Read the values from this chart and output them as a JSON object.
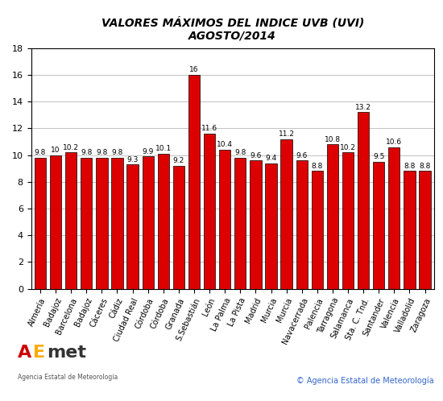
{
  "title_line1": "VALORES MÁXIMOS DEL INDICE UVB (UVI)",
  "title_line2": "AGOSTO/2014",
  "x_labels": [
    "Almería",
    "Badajoz",
    "Barcelona",
    "Badajoz",
    "Cáceres",
    "Cádiz",
    "Ciudad Real",
    "Córdoba",
    "Córdoba",
    "Granada",
    "S.Sebastián",
    "León",
    "La Palma",
    "La Pista",
    "Madrid",
    "Murcia",
    "Murcia",
    "Navacerrada",
    "Palencia",
    "Tarragona",
    "Salamanca",
    "Sta. C. Tnd.",
    "Santander",
    "Valencia",
    "Valladolid",
    "Zaragoza"
  ],
  "values": [
    9.8,
    10.0,
    10.2,
    9.8,
    9.8,
    9.8,
    9.3,
    9.9,
    10.1,
    9.2,
    16.0,
    11.6,
    10.4,
    9.8,
    9.6,
    9.4,
    11.2,
    9.6,
    8.8,
    10.8,
    10.2,
    13.2,
    9.5,
    10.6,
    8.8,
    8.8
  ],
  "bar_color": "#dd0000",
  "bar_edge_color": "#000000",
  "ylim": [
    0,
    18
  ],
  "yticks": [
    0,
    2,
    4,
    6,
    8,
    10,
    12,
    14,
    16,
    18
  ],
  "grid_color": "#aaaaaa",
  "background_color": "#ffffff",
  "title_fontsize": 10,
  "label_fontsize": 7,
  "value_fontsize": 6.5,
  "ytick_fontsize": 8,
  "copyright_text": "© Agencia Estatal de Meteorología",
  "copyright_color": "#3366cc"
}
